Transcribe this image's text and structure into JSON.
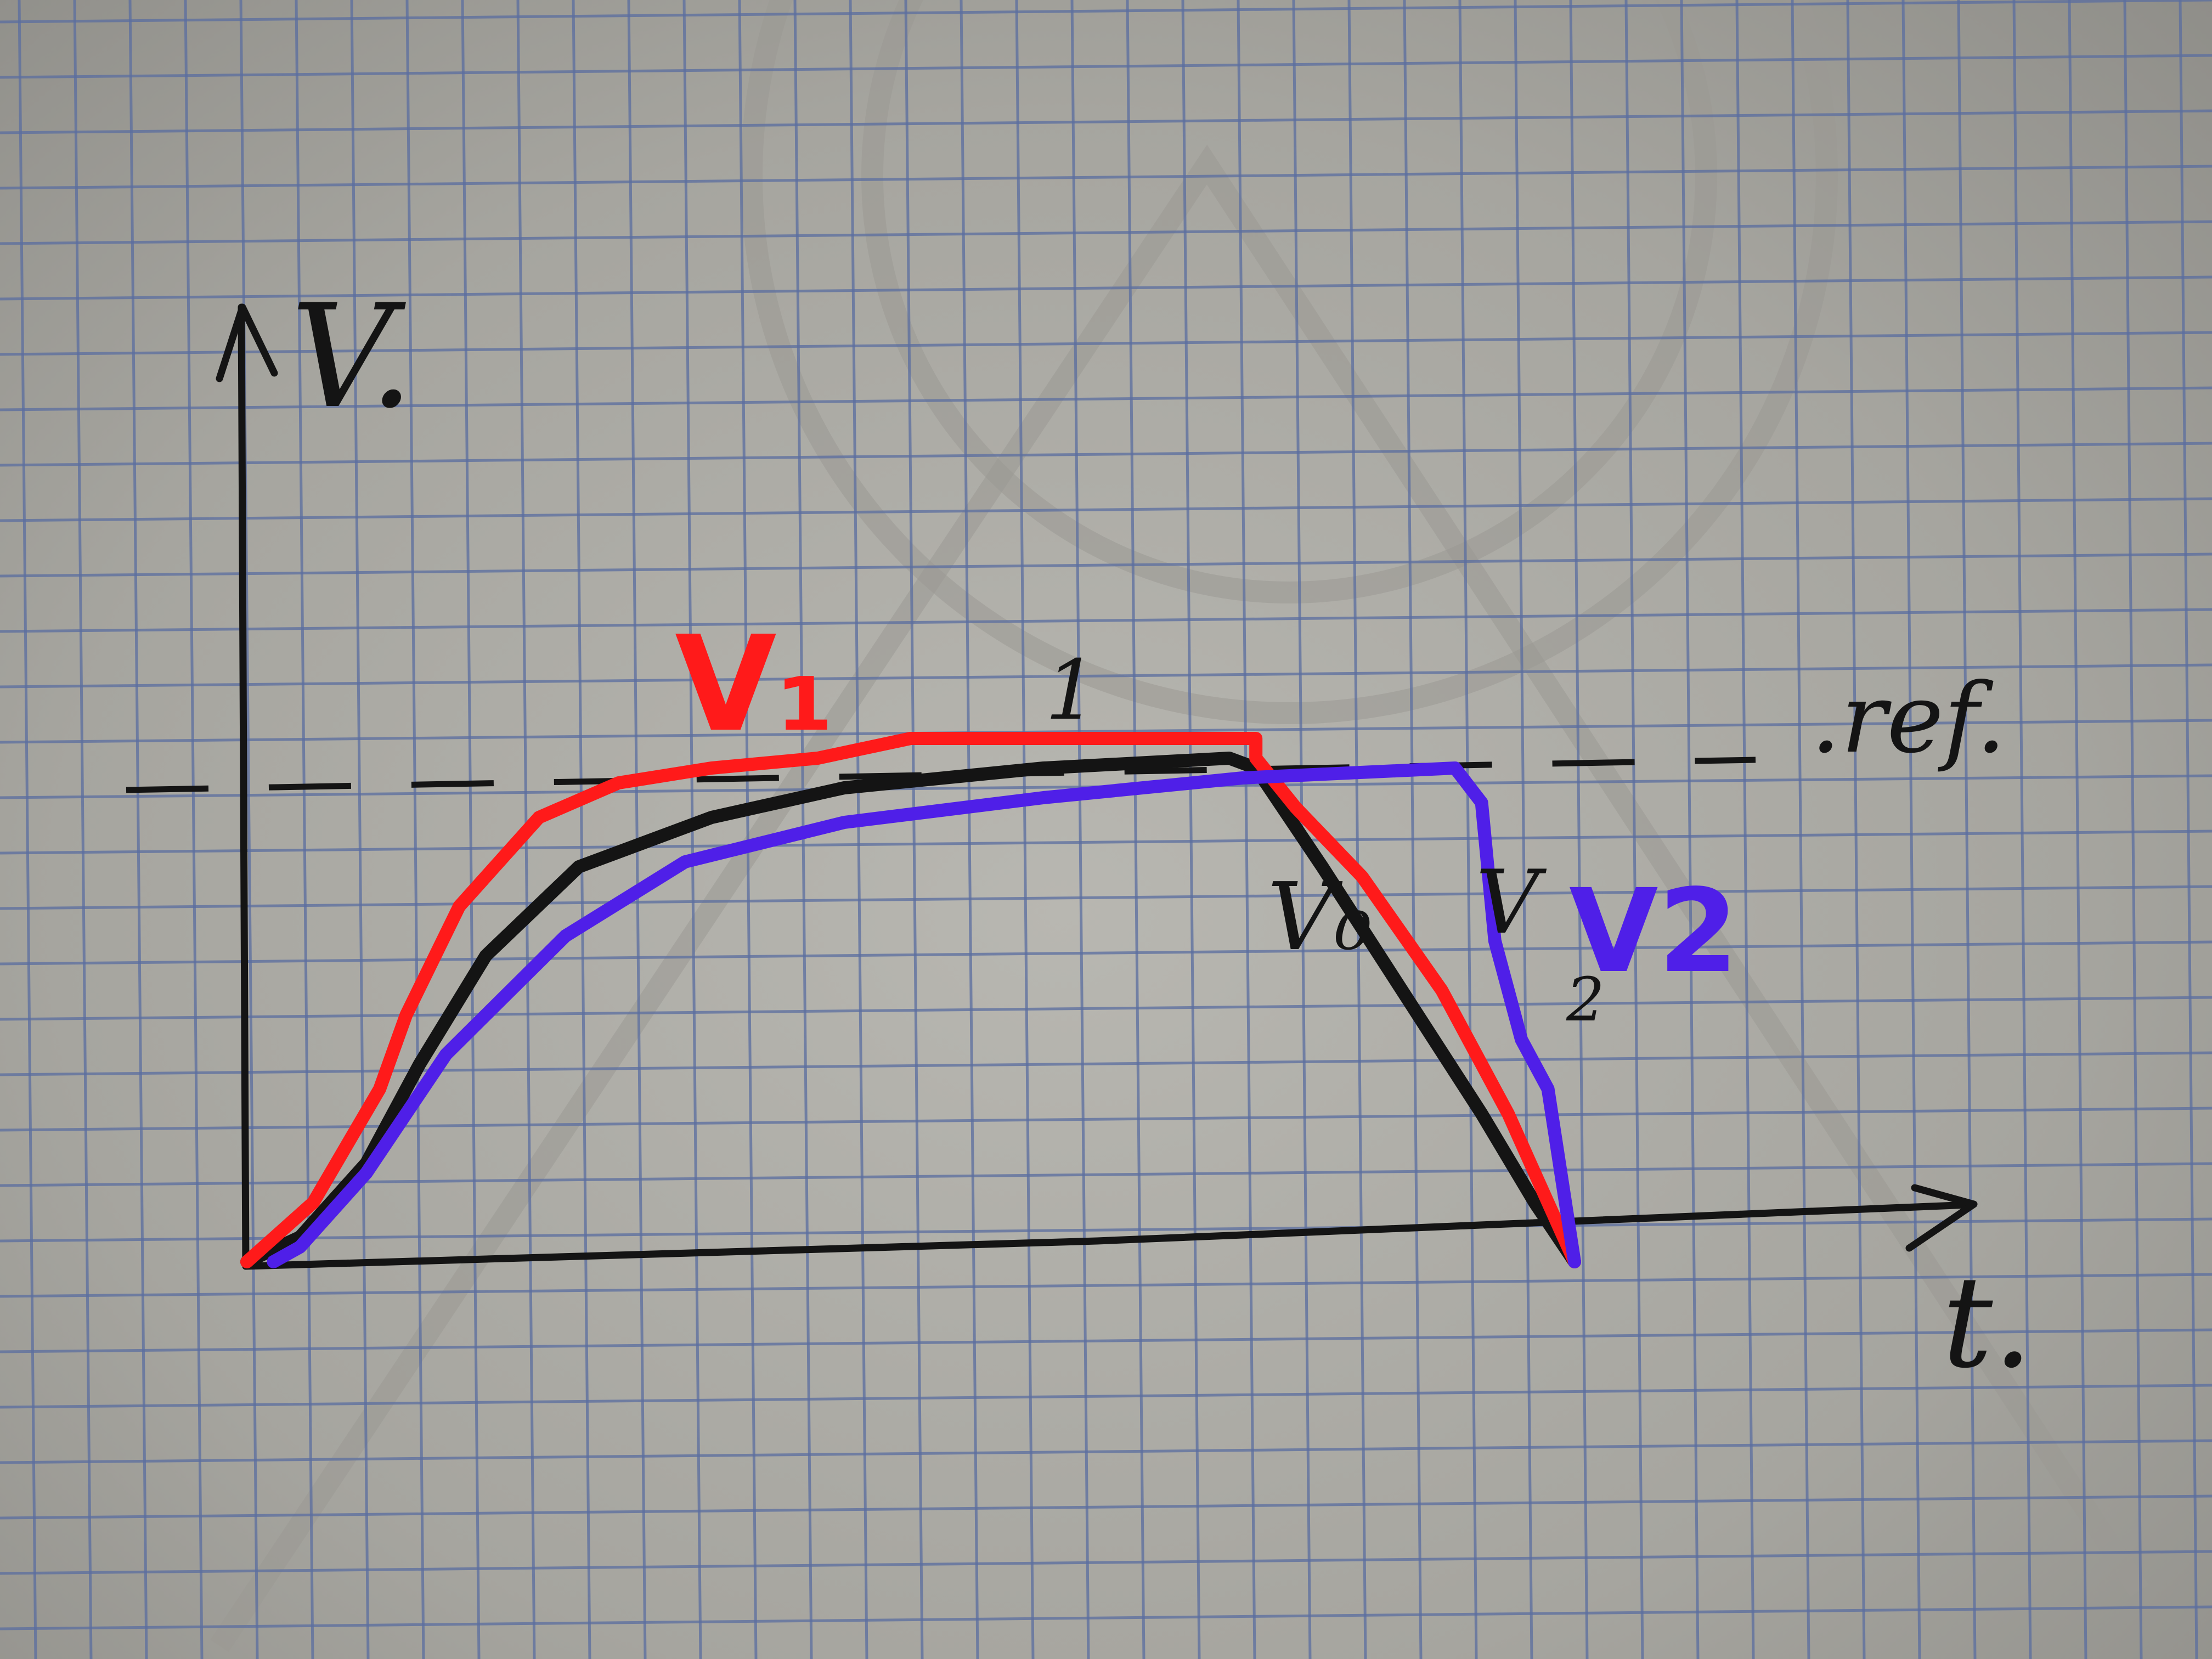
{
  "chart_data": {
    "type": "line",
    "xlabel": "t.",
    "ylabel": "V.",
    "reference": {
      "label": ".ref.",
      "value": 1.0
    },
    "xlim": [
      0,
      10
    ],
    "ylim": [
      0,
      1.6
    ],
    "grid": true,
    "series": [
      {
        "name": "V₀",
        "color": "#141414",
        "points": [
          [
            0,
            0
          ],
          [
            0.4,
            0.05
          ],
          [
            0.9,
            0.2
          ],
          [
            1.3,
            0.4
          ],
          [
            1.8,
            0.62
          ],
          [
            2.5,
            0.8
          ],
          [
            3.5,
            0.9
          ],
          [
            4.5,
            0.96
          ],
          [
            6,
            1.0
          ],
          [
            7.4,
            1.02
          ],
          [
            7.6,
            1.0
          ],
          [
            8.1,
            0.8
          ],
          [
            8.7,
            0.55
          ],
          [
            9.3,
            0.3
          ],
          [
            9.7,
            0.12
          ],
          [
            10,
            0
          ]
        ]
      },
      {
        "name": "V₁",
        "color": "#ff1a1a",
        "points": [
          [
            0,
            0
          ],
          [
            0.5,
            0.12
          ],
          [
            1.0,
            0.35
          ],
          [
            1.2,
            0.5
          ],
          [
            1.6,
            0.72
          ],
          [
            2.2,
            0.9
          ],
          [
            2.8,
            0.97
          ],
          [
            3.5,
            1.0
          ],
          [
            4.3,
            1.02
          ],
          [
            5.0,
            1.06
          ],
          [
            6.2,
            1.06
          ],
          [
            7.6,
            1.06
          ],
          [
            7.6,
            1.02
          ],
          [
            7.9,
            0.92
          ],
          [
            8.4,
            0.78
          ],
          [
            9.0,
            0.55
          ],
          [
            9.5,
            0.3
          ],
          [
            10,
            0
          ]
        ]
      },
      {
        "name": "V₂",
        "color": "#4f1fe8",
        "points": [
          [
            0.2,
            0
          ],
          [
            0.4,
            0.03
          ],
          [
            0.9,
            0.18
          ],
          [
            1.5,
            0.42
          ],
          [
            2.4,
            0.66
          ],
          [
            3.3,
            0.81
          ],
          [
            4.5,
            0.89
          ],
          [
            6,
            0.94
          ],
          [
            7.5,
            0.98
          ],
          [
            9.1,
            1.0
          ],
          [
            9.3,
            0.93
          ],
          [
            9.4,
            0.65
          ],
          [
            9.6,
            0.45
          ],
          [
            9.8,
            0.35
          ],
          [
            10,
            0
          ]
        ]
      }
    ],
    "annotations": [
      "1",
      "V₀",
      "V",
      "2",
      "V2"
    ]
  },
  "colors": {
    "paper": "#a9a8a2",
    "grid": "#5b6ea0",
    "ink": "#141414",
    "red": "#ff1a1a",
    "blue": "#4f1fe8"
  }
}
